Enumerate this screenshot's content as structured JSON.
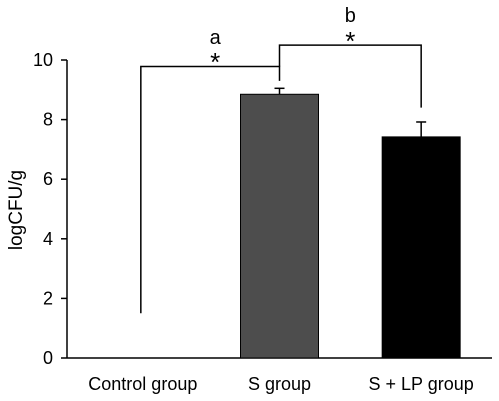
{
  "chart_data": {
    "type": "bar",
    "ylabel": "logCFU/g",
    "ylim": [
      0,
      10
    ],
    "yticks": [
      0,
      2,
      4,
      6,
      8,
      10
    ],
    "categories": [
      "Control group",
      "S group",
      "S + LP group"
    ],
    "values": [
      0,
      8.85,
      7.42
    ],
    "errors": [
      0,
      0.2,
      0.5
    ],
    "bar_colors": [
      "#ffffff",
      "#4d4d4d",
      "#000000"
    ],
    "grid": false,
    "annotations": [
      {
        "letter": "a",
        "star": "*",
        "from": "Control group",
        "to": "S group"
      },
      {
        "letter": "b",
        "star": "*",
        "from": "S group",
        "to": "S + LP group"
      }
    ]
  }
}
